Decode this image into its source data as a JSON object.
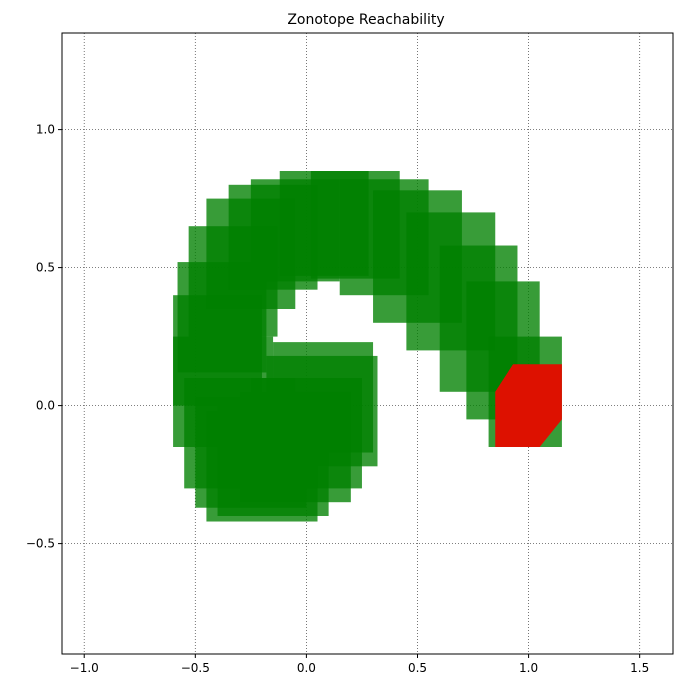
{
  "chart_data": {
    "type": "area",
    "title": "Zonotope Reachability",
    "xlabel": "",
    "ylabel": "",
    "xlim": [
      -1.1,
      1.65
    ],
    "ylim": [
      -0.9,
      1.35
    ],
    "xticks": [
      -1.0,
      -0.5,
      0.0,
      0.5,
      1.0,
      1.5
    ],
    "xtick_labels": [
      "−1.0",
      "−0.5",
      "0.0",
      "0.5",
      "1.0",
      "1.5"
    ],
    "yticks": [
      -0.5,
      0.0,
      0.5,
      1.0
    ],
    "ytick_labels": [
      "−0.5",
      "0.0",
      "0.5",
      "1.0"
    ],
    "grid": true,
    "grid_style": "dotted",
    "series": [
      {
        "role": "reachable-set-boxes",
        "color": "#008000",
        "opacity": 0.78,
        "boxes": [
          {
            "x0": -0.15,
            "x1": 0.3,
            "y0": -0.17,
            "y1": 0.23
          },
          {
            "x0": -0.18,
            "x1": 0.32,
            "y0": -0.22,
            "y1": 0.18
          },
          {
            "x0": -0.25,
            "x1": 0.25,
            "y0": -0.3,
            "y1": 0.1
          },
          {
            "x0": -0.3,
            "x1": 0.2,
            "y0": -0.35,
            "y1": 0.05
          },
          {
            "x0": -0.4,
            "x1": 0.1,
            "y0": -0.4,
            "y1": 0.0
          },
          {
            "x0": -0.45,
            "x1": 0.05,
            "y0": -0.42,
            "y1": -0.02
          },
          {
            "x0": -0.5,
            "x1": 0.0,
            "y0": -0.37,
            "y1": 0.03
          },
          {
            "x0": -0.55,
            "x1": -0.05,
            "y0": -0.3,
            "y1": 0.1
          },
          {
            "x0": -0.6,
            "x1": -0.15,
            "y0": -0.15,
            "y1": 0.25
          },
          {
            "x0": -0.6,
            "x1": -0.2,
            "y0": 0.0,
            "y1": 0.4
          },
          {
            "x0": -0.58,
            "x1": -0.18,
            "y0": 0.12,
            "y1": 0.52
          },
          {
            "x0": -0.53,
            "x1": -0.13,
            "y0": 0.25,
            "y1": 0.65
          },
          {
            "x0": -0.45,
            "x1": -0.05,
            "y0": 0.35,
            "y1": 0.75
          },
          {
            "x0": -0.35,
            "x1": 0.05,
            "y0": 0.42,
            "y1": 0.8
          },
          {
            "x0": -0.25,
            "x1": 0.15,
            "y0": 0.45,
            "y1": 0.82
          },
          {
            "x0": -0.12,
            "x1": 0.28,
            "y0": 0.47,
            "y1": 0.85
          },
          {
            "x0": 0.02,
            "x1": 0.42,
            "y0": 0.46,
            "y1": 0.85
          },
          {
            "x0": 0.15,
            "x1": 0.55,
            "y0": 0.4,
            "y1": 0.82
          },
          {
            "x0": 0.3,
            "x1": 0.7,
            "y0": 0.3,
            "y1": 0.78
          },
          {
            "x0": 0.45,
            "x1": 0.85,
            "y0": 0.2,
            "y1": 0.7
          },
          {
            "x0": 0.6,
            "x1": 0.95,
            "y0": 0.05,
            "y1": 0.58
          },
          {
            "x0": 0.72,
            "x1": 1.05,
            "y0": -0.05,
            "y1": 0.45
          },
          {
            "x0": 0.82,
            "x1": 1.15,
            "y0": -0.15,
            "y1": 0.25
          }
        ]
      },
      {
        "role": "final-set",
        "color": "#dd1100",
        "vertices": [
          [
            0.85,
            0.05
          ],
          [
            0.93,
            0.15
          ],
          [
            1.15,
            0.15
          ],
          [
            1.15,
            -0.05
          ],
          [
            1.05,
            -0.15
          ],
          [
            0.85,
            -0.15
          ]
        ]
      }
    ]
  }
}
